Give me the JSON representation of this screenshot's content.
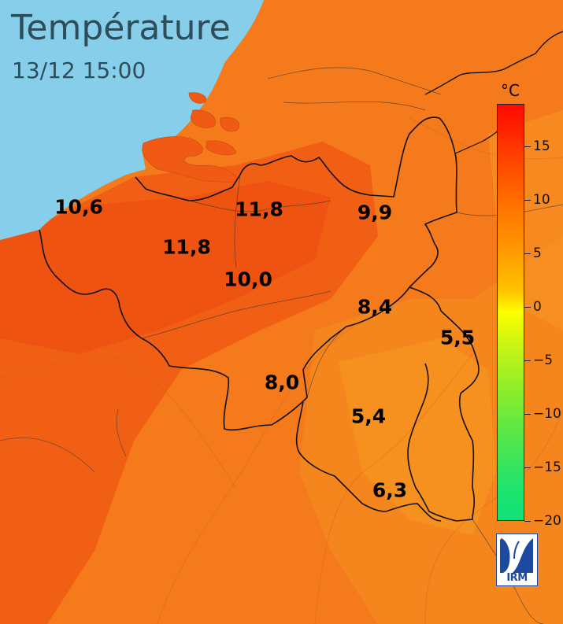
{
  "header": {
    "title": "Température",
    "datetime": "13/12 15:00"
  },
  "map": {
    "readings": [
      {
        "id": "coast",
        "text": "10,6"
      },
      {
        "id": "north",
        "text": "11,8"
      },
      {
        "id": "west",
        "text": "11,8"
      },
      {
        "id": "center",
        "text": "10,0"
      },
      {
        "id": "northeast",
        "text": "9,9"
      },
      {
        "id": "east",
        "text": "8,4"
      },
      {
        "id": "far-east",
        "text": "5,5"
      },
      {
        "id": "south-center",
        "text": "8,0"
      },
      {
        "id": "southeast",
        "text": "5,4"
      },
      {
        "id": "south",
        "text": "6,3"
      }
    ],
    "colors": {
      "sea": "#87ceeb",
      "warm": "#f05a14",
      "land": "#f47a1c"
    }
  },
  "legend": {
    "unit": "°C",
    "ticks": [
      "15",
      "10",
      "5",
      "0",
      "−5",
      "−10",
      "−15",
      "−20"
    ]
  },
  "logo": {
    "text": "IRM",
    "icon": "irm-logo"
  }
}
